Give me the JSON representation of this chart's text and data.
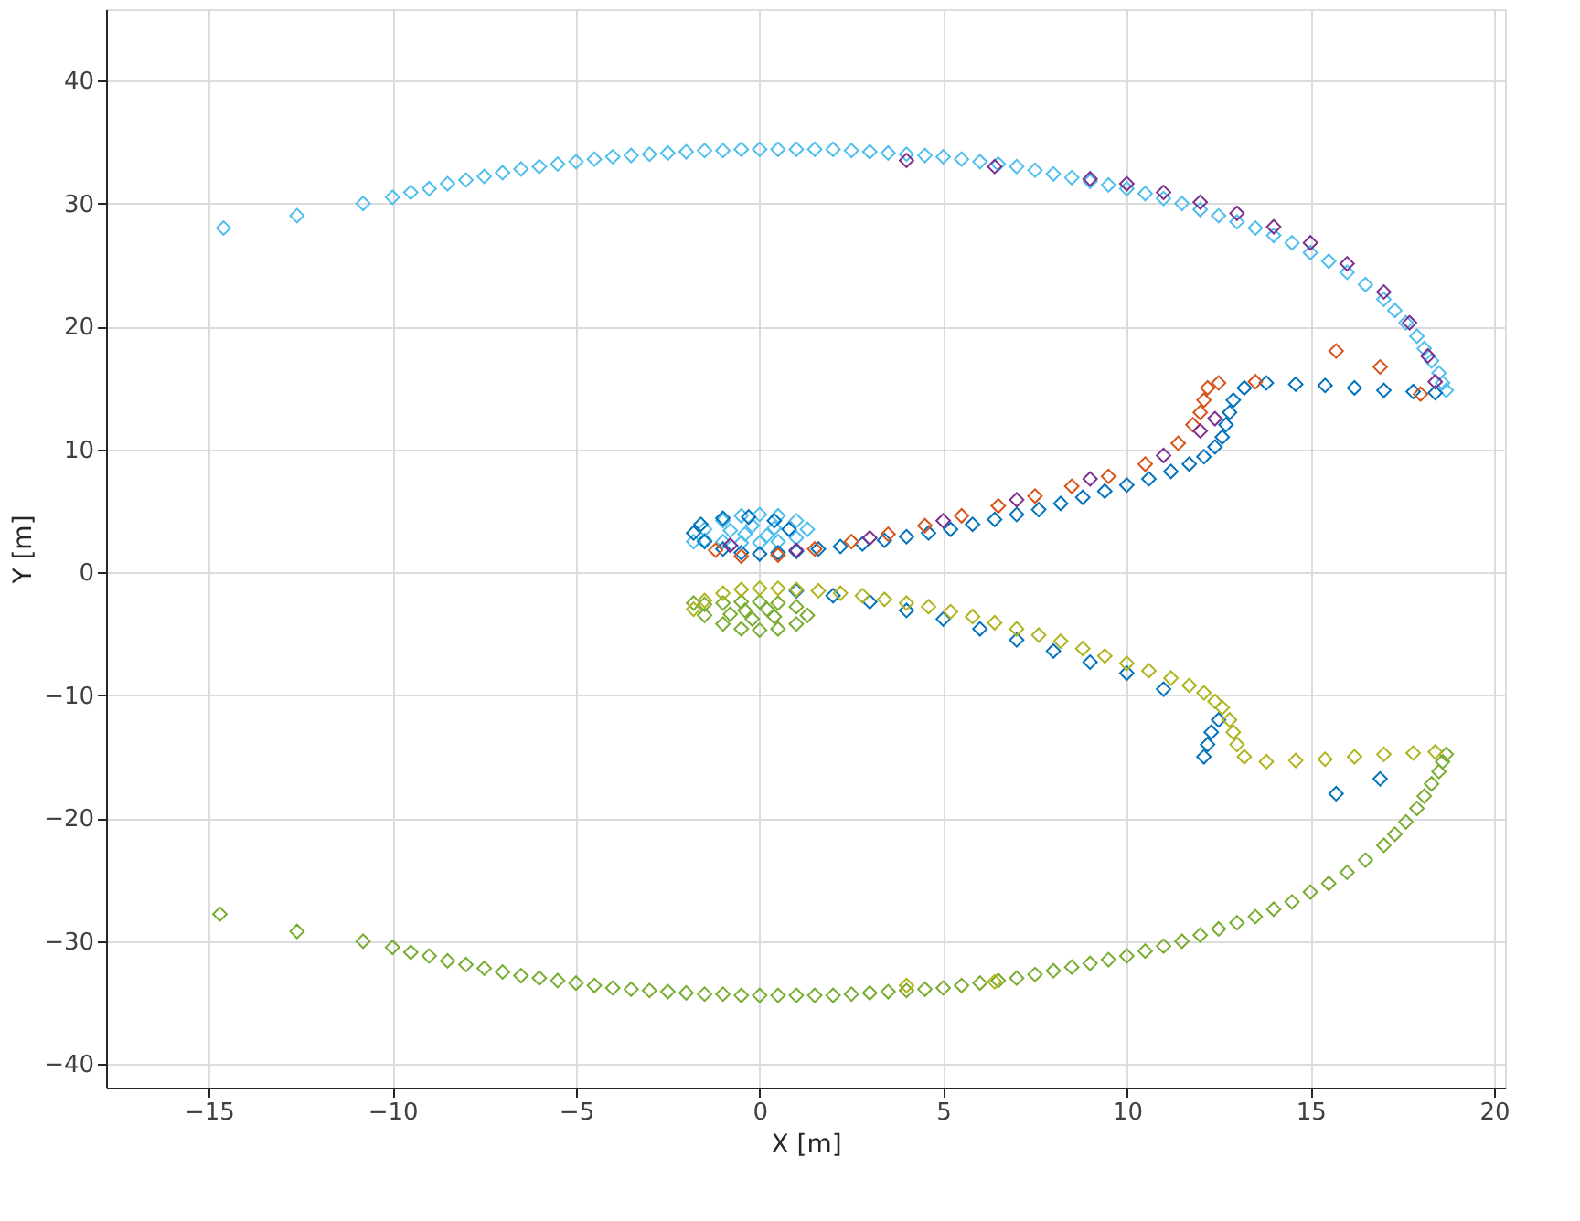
{
  "chart_data": {
    "type": "scatter",
    "xlabel": "X [m]",
    "ylabel": "Y [m]",
    "xlim": [
      -17.8,
      20.3
    ],
    "ylim": [
      -41.9,
      45.8
    ],
    "xticks": [
      -15,
      -10,
      -5,
      0,
      5,
      10,
      15,
      20
    ],
    "yticks": [
      -40,
      -30,
      -20,
      -10,
      0,
      10,
      20,
      30,
      40
    ],
    "grid": true,
    "marker": "diamond",
    "legend": false,
    "series": [
      {
        "color": "#4dbeee",
        "x": [
          -14.6,
          -12.6,
          -10.8,
          -10.0,
          -9.5,
          -9,
          -8.5,
          -8,
          -7.5,
          -7,
          -6.5,
          -6,
          -5.5,
          -5,
          -4.5,
          -4,
          -3.5,
          -3,
          -2.5,
          -2,
          -1.5,
          -1,
          -0.5,
          0,
          0.5,
          1,
          1.5,
          2,
          2.5,
          3,
          3.5,
          4,
          4.5,
          5,
          5.5,
          6,
          6.5,
          7,
          7.5,
          8,
          8.5,
          9,
          9.5,
          10,
          10.5,
          11,
          11.5,
          12,
          12.5,
          13,
          13.5,
          14,
          14.5,
          15,
          15.5,
          16,
          16.5,
          17,
          17.3,
          17.6,
          17.9,
          18.1,
          18.3,
          18.5,
          18.6,
          18.7,
          -1.8,
          -1.5,
          -1,
          -0.5,
          0,
          0.5,
          1,
          1.3,
          1,
          0.5,
          0,
          -0.5,
          -1,
          -1.5,
          -0.8,
          -0.2,
          0.4,
          0.2,
          -0.4
        ],
        "values": [
          28,
          29,
          30,
          30.5,
          30.9,
          31.2,
          31.6,
          31.9,
          32.2,
          32.5,
          32.8,
          33.0,
          33.2,
          33.4,
          33.6,
          33.8,
          33.9,
          34.0,
          34.1,
          34.2,
          34.3,
          34.3,
          34.4,
          34.4,
          34.4,
          34.4,
          34.4,
          34.4,
          34.3,
          34.2,
          34.1,
          34.0,
          33.9,
          33.8,
          33.6,
          33.4,
          33.2,
          33.0,
          32.7,
          32.4,
          32.1,
          31.8,
          31.5,
          31.2,
          30.8,
          30.4,
          30.0,
          29.5,
          29.0,
          28.5,
          28.0,
          27.4,
          26.8,
          26.0,
          25.3,
          24.4,
          23.4,
          22.2,
          21.3,
          20.3,
          19.2,
          18.2,
          17.2,
          16.2,
          15.4,
          14.8,
          2.5,
          3.5,
          4.2,
          4.6,
          4.7,
          4.6,
          4.2,
          3.5,
          2.8,
          2.5,
          2.4,
          2.4,
          2.5,
          2.6,
          3.4,
          3.8,
          3.6,
          3.0,
          3.1
        ]
      },
      {
        "color": "#0072bd",
        "x": [
          18.4,
          17.8,
          17.0,
          16.2,
          15.4,
          14.6,
          13.8,
          13.2,
          12.9,
          12.8,
          12.7,
          12.6,
          12.4,
          12.1,
          11.7,
          11.2,
          10.6,
          10,
          9.4,
          8.8,
          8.2,
          7.6,
          7,
          6.4,
          5.8,
          5.2,
          4.6,
          4,
          3.4,
          2.8,
          2.2,
          1.6,
          1,
          0.5,
          0,
          -0.5,
          -1,
          -1.5,
          -1.8,
          -1.6,
          -1,
          -0.3,
          0.4,
          0.8,
          12.1,
          12.2,
          12.3,
          12.5,
          15.7,
          16.9,
          11,
          10,
          9,
          8,
          7,
          6,
          5,
          4,
          3,
          2,
          1
        ],
        "values": [
          14.6,
          14.7,
          14.8,
          15,
          15.2,
          15.3,
          15.4,
          15,
          14,
          13,
          12,
          11,
          10.2,
          9.4,
          8.8,
          8.2,
          7.6,
          7.1,
          6.6,
          6.1,
          5.6,
          5.1,
          4.7,
          4.3,
          3.9,
          3.5,
          3.2,
          2.9,
          2.6,
          2.3,
          2.1,
          1.9,
          1.7,
          1.6,
          1.5,
          1.6,
          1.9,
          2.5,
          3.2,
          3.9,
          4.4,
          4.5,
          4.2,
          3.5,
          -15,
          -14,
          -13,
          -12,
          -18,
          -16.8,
          -9.5,
          -8.2,
          -7.3,
          -6.4,
          -5.5,
          -4.6,
          -3.8,
          -3.1,
          -2.4,
          -1.9,
          -1.5
        ]
      },
      {
        "color": "#d95319",
        "x": [
          18.0,
          16.9,
          15.7,
          13.5,
          12.5,
          12.2,
          12.1,
          12.0,
          11.8,
          11.4,
          10.5,
          9.5,
          8.5,
          7.5,
          6.5,
          5.5,
          4.5,
          3.5,
          2.5,
          1.5,
          0.5,
          -0.5,
          -1.2
        ],
        "values": [
          14.5,
          16.7,
          18,
          15.5,
          15.4,
          15,
          14,
          13,
          12,
          10.5,
          8.8,
          7.8,
          7,
          6.2,
          5.4,
          4.6,
          3.8,
          3.1,
          2.5,
          1.9,
          1.4,
          1.3,
          1.8
        ]
      },
      {
        "color": "#7e2f8e",
        "x": [
          4,
          6.4,
          9,
          10,
          11,
          12,
          13,
          14,
          15,
          16,
          17,
          17.7,
          18.2,
          18.4,
          12.4,
          12.0,
          11.0,
          9.0,
          7.0,
          5.0,
          3.0,
          1.0,
          -0.8
        ],
        "values": [
          33.5,
          33,
          32.0,
          31.6,
          30.9,
          30.1,
          29.2,
          28.1,
          26.8,
          25.1,
          22.8,
          20.3,
          17.6,
          15.5,
          12.5,
          11.5,
          9.5,
          7.6,
          5.9,
          4.2,
          2.8,
          1.8,
          2.2
        ]
      },
      {
        "color": "#77ac30",
        "x": [
          -14.7,
          -12.6,
          -10.8,
          -10.0,
          -9.5,
          -9,
          -8.5,
          -8,
          -7.5,
          -7,
          -6.5,
          -6,
          -5.5,
          -5,
          -4.5,
          -4,
          -3.5,
          -3,
          -2.5,
          -2,
          -1.5,
          -1,
          -0.5,
          0,
          0.5,
          1,
          1.5,
          2,
          2.5,
          3,
          3.5,
          4,
          4.5,
          5,
          5.5,
          6,
          6.5,
          7,
          7.5,
          8,
          8.5,
          9,
          9.5,
          10,
          10.5,
          11,
          11.5,
          12,
          12.5,
          13,
          13.5,
          14,
          14.5,
          15,
          15.5,
          16,
          16.5,
          17,
          17.3,
          17.6,
          17.9,
          18.1,
          18.3,
          18.5,
          18.6,
          18.7,
          -1.8,
          -1.5,
          -1,
          -0.5,
          0,
          0.5,
          1,
          1.3,
          1,
          0.5,
          0,
          -0.5,
          -1,
          -1.5,
          -0.8,
          -0.2,
          0.4,
          0.2,
          -0.4
        ],
        "values": [
          -27.8,
          -29.2,
          -30,
          -30.5,
          -30.9,
          -31.2,
          -31.6,
          -31.9,
          -32.2,
          -32.5,
          -32.8,
          -33.0,
          -33.2,
          -33.4,
          -33.6,
          -33.8,
          -33.9,
          -34.0,
          -34.1,
          -34.2,
          -34.3,
          -34.3,
          -34.4,
          -34.4,
          -34.4,
          -34.4,
          -34.4,
          -34.4,
          -34.3,
          -34.2,
          -34.1,
          -34.0,
          -33.9,
          -33.8,
          -33.6,
          -33.4,
          -33.2,
          -33.0,
          -32.7,
          -32.4,
          -32.1,
          -31.8,
          -31.5,
          -31.2,
          -30.8,
          -30.4,
          -30.0,
          -29.5,
          -29.0,
          -28.5,
          -28.0,
          -27.4,
          -26.8,
          -26.0,
          -25.3,
          -24.4,
          -23.4,
          -22.2,
          -21.3,
          -20.3,
          -19.2,
          -18.2,
          -17.2,
          -16.2,
          -15.4,
          -14.8,
          -2.5,
          -3.5,
          -4.2,
          -4.6,
          -4.7,
          -4.6,
          -4.2,
          -3.5,
          -2.8,
          -2.5,
          -2.4,
          -2.4,
          -2.5,
          -2.6,
          -3.4,
          -3.8,
          -3.6,
          -3.0,
          -3.1
        ]
      },
      {
        "color": "#b0b41c",
        "x": [
          18.4,
          17.8,
          17.0,
          16.2,
          15.4,
          14.6,
          13.8,
          13.2,
          13.0,
          12.9,
          12.8,
          12.6,
          12.4,
          12.1,
          11.7,
          11.2,
          10.6,
          10,
          9.4,
          8.8,
          8.2,
          7.6,
          7,
          6.4,
          5.8,
          5.2,
          4.6,
          4,
          3.4,
          2.8,
          2.2,
          1.6,
          1,
          0.5,
          0,
          -0.5,
          -1,
          -1.5,
          -1.8,
          4,
          6.4
        ],
        "values": [
          -14.6,
          -14.7,
          -14.8,
          -15,
          -15.2,
          -15.3,
          -15.4,
          -15,
          -14,
          -13,
          -12,
          -11,
          -10.5,
          -9.8,
          -9.2,
          -8.6,
          -8,
          -7.4,
          -6.8,
          -6.2,
          -5.6,
          -5.1,
          -4.6,
          -4.1,
          -3.6,
          -3.2,
          -2.8,
          -2.5,
          -2.2,
          -1.9,
          -1.7,
          -1.5,
          -1.4,
          -1.3,
          -1.3,
          -1.4,
          -1.7,
          -2.3,
          -3.0,
          -33.6,
          -33.3
        ]
      }
    ]
  }
}
